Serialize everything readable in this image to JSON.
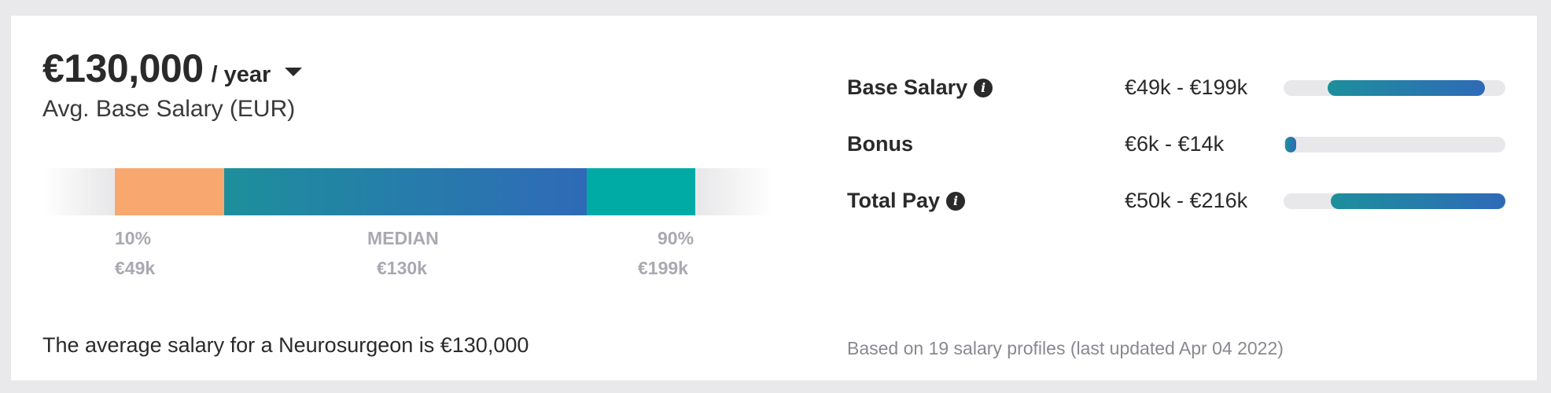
{
  "summary": {
    "amount": "€130,000",
    "period": "/ year",
    "subtitle": "Avg. Base Salary (EUR)"
  },
  "distribution": {
    "p10": {
      "label": "10%",
      "value": "€49k"
    },
    "median": {
      "label": "MEDIAN",
      "value": "€130k"
    },
    "p90": {
      "label": "90%",
      "value": "€199k"
    },
    "colors": {
      "low": "#f8a86e",
      "mid_start": "#1d8f9c",
      "mid_end": "#2f6ab8",
      "high": "#00aba6"
    }
  },
  "average_text": "The average salary for a Neurosurgeon is €130,000",
  "pay_rows": [
    {
      "label": "Base Salary",
      "range": "€49k - €199k",
      "has_info": true
    },
    {
      "label": "Bonus",
      "range": "€6k - €14k",
      "has_info": false
    },
    {
      "label": "Total Pay",
      "range": "€50k - €216k",
      "has_info": true
    }
  ],
  "footnote": "Based on 19 salary profiles (last updated Apr 04 2022)",
  "icons": {
    "info": "info-icon",
    "caret": "chevron-down-icon"
  }
}
